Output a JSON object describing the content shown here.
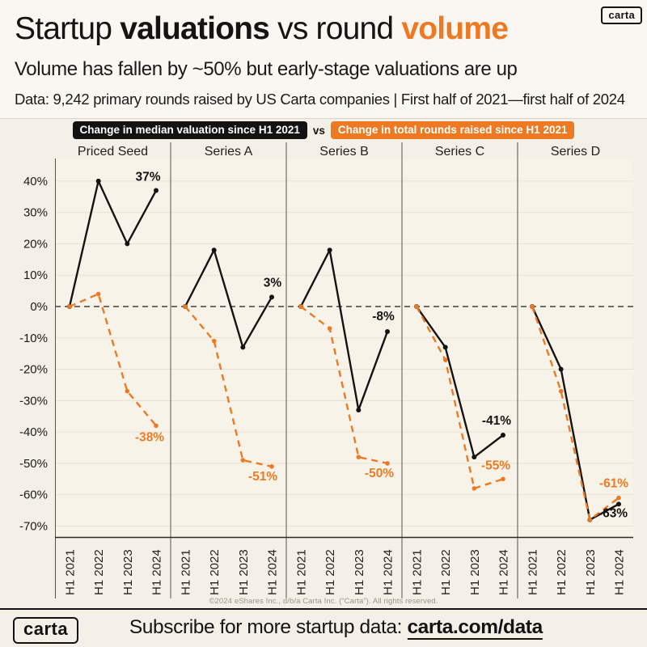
{
  "header": {
    "badge": "carta",
    "title_parts": [
      {
        "text": "Startup ",
        "style": "regular",
        "color": "#151413"
      },
      {
        "text": "valuations",
        "style": "bold",
        "color": "#151413"
      },
      {
        "text": " vs round ",
        "style": "regular",
        "color": "#151413"
      },
      {
        "text": "volume",
        "style": "bold",
        "color": "#ED7A23"
      }
    ],
    "subtitle": "Volume has fallen by ~50% but early-stage valuations are up",
    "data_note": "Data: 9,242 primary rounds raised by US Carta companies | First half of 2021—first half of 2024"
  },
  "legend": {
    "valuation_label": "Change in median valuation since H1 2021",
    "vs_label": "vs",
    "rounds_label": "Change in total rounds raised since H1 2021",
    "valuation_color": "#131313",
    "rounds_color": "#ED7A23"
  },
  "chart_data": {
    "type": "line",
    "x_categories": [
      "H1 2021",
      "H1 2022",
      "H1 2023",
      "H1 2024"
    ],
    "y_axis": {
      "max": 40,
      "min": -70,
      "step": 10,
      "unit": "%",
      "zero_line": "dashed"
    },
    "series_names": [
      "Change in median valuation since H1 2021",
      "Change in total rounds raised since H1 2021"
    ],
    "colors": {
      "valuation": "#151413",
      "rounds": "#ED7A23",
      "gridline": "#e7e1d3"
    },
    "panels": [
      {
        "label": "Priced Seed",
        "valuation": [
          0,
          40,
          20,
          37
        ],
        "rounds": [
          0,
          4,
          -27,
          -38
        ],
        "valuation_end_label": "37%",
        "rounds_end_label": "-38%"
      },
      {
        "label": "Series A",
        "valuation": [
          0,
          18,
          -13,
          3
        ],
        "rounds": [
          0,
          -11,
          -49,
          -51
        ],
        "valuation_end_label": "3%",
        "rounds_end_label": "-51%"
      },
      {
        "label": "Series B",
        "valuation": [
          0,
          18,
          -33,
          -8
        ],
        "rounds": [
          0,
          -7,
          -48,
          -50
        ],
        "valuation_end_label": "-8%",
        "rounds_end_label": "-50%"
      },
      {
        "label": "Series C",
        "valuation": [
          0,
          -13,
          -48,
          -41
        ],
        "rounds": [
          0,
          -17,
          -58,
          -55
        ],
        "valuation_end_label": "-41%",
        "rounds_end_label": "-55%"
      },
      {
        "label": "Series D",
        "valuation": [
          0,
          -20,
          -68,
          -63
        ],
        "rounds": [
          0,
          -27,
          -68,
          -61
        ],
        "valuation_end_label": "-63%",
        "rounds_end_label": "-61%"
      }
    ]
  },
  "footer": {
    "copyright": "©2024 eShares Inc., d/b/a Carta Inc. (“Carta”). All rights reserved.",
    "logo": "carta",
    "subscribe_prefix": "Subscribe for more startup data: ",
    "subscribe_link": "carta.com/data"
  }
}
